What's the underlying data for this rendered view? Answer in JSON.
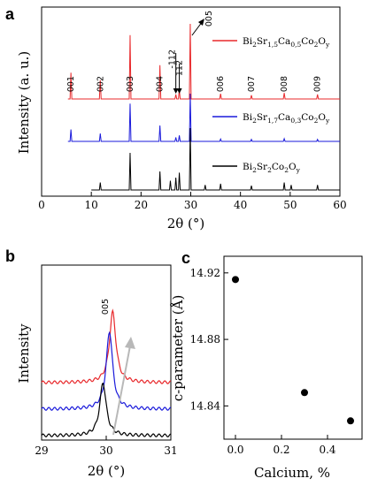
{
  "panels": {
    "a": "a",
    "b": "b",
    "c": "c"
  },
  "colors": {
    "red": "#e8282b",
    "blue": "#1a1adb",
    "black": "#000000",
    "gray": "#b8b8b8"
  },
  "chart_data": [
    {
      "id": "a",
      "type": "line",
      "xlabel": "2θ (°)",
      "ylabel": "Intensity (a. u.)",
      "xlim": [
        0,
        60
      ],
      "xticks": [
        0,
        10,
        20,
        30,
        40,
        50,
        60
      ],
      "series": [
        {
          "name_parts": [
            "Bi",
            "2",
            "Sr",
            "1,5",
            "Ca",
            "0,5",
            "Co",
            "2",
            "O",
            "y"
          ],
          "color": "#e8282b",
          "peaks": [
            [
              5.9,
              0.35
            ],
            [
              11.8,
              0.25
            ],
            [
              17.8,
              0.85
            ],
            [
              23.8,
              0.45
            ],
            [
              27.0,
              0.06
            ],
            [
              27.7,
              0.12
            ],
            [
              29.9,
              1.0
            ],
            [
              36.0,
              0.07
            ],
            [
              42.2,
              0.05
            ],
            [
              48.8,
              0.08
            ],
            [
              55.5,
              0.06
            ]
          ]
        },
        {
          "name_parts": [
            "Bi",
            "2",
            "Sr",
            "1,7",
            "Ca",
            "0,3",
            "Co",
            "2",
            "O",
            "y"
          ],
          "color": "#1a1adb",
          "peaks": [
            [
              5.9,
              0.3
            ],
            [
              11.8,
              0.2
            ],
            [
              17.8,
              0.95
            ],
            [
              23.8,
              0.4
            ],
            [
              27.0,
              0.1
            ],
            [
              27.7,
              0.15
            ],
            [
              29.9,
              1.2
            ],
            [
              36.0,
              0.06
            ],
            [
              42.2,
              0.05
            ],
            [
              48.8,
              0.07
            ],
            [
              55.5,
              0.05
            ]
          ]
        },
        {
          "name_parts": [
            "Bi",
            "2",
            "Sr",
            "2",
            "Co",
            "2",
            "O",
            "y"
          ],
          "color": "#000000",
          "peaks": [
            [
              11.8,
              0.12
            ],
            [
              17.8,
              0.6
            ],
            [
              23.8,
              0.3
            ],
            [
              25.9,
              0.15
            ],
            [
              27.0,
              0.2
            ],
            [
              27.7,
              0.28
            ],
            [
              29.9,
              1.0
            ],
            [
              32.9,
              0.08
            ],
            [
              36.0,
              0.1
            ],
            [
              42.2,
              0.07
            ],
            [
              48.8,
              0.12
            ],
            [
              50.2,
              0.08
            ],
            [
              55.5,
              0.08
            ]
          ]
        }
      ],
      "annotations": [
        {
          "label": "001",
          "x": 5.9
        },
        {
          "label": "002",
          "x": 11.8
        },
        {
          "label": "003",
          "x": 17.8
        },
        {
          "label": "004",
          "x": 23.8
        },
        {
          "label": "-112",
          "x": 26.6
        },
        {
          "label": "112",
          "x": 27.7
        },
        {
          "label": "005",
          "x": 29.9
        },
        {
          "label": "006",
          "x": 36.0
        },
        {
          "label": "007",
          "x": 42.2
        },
        {
          "label": "008",
          "x": 48.8
        },
        {
          "label": "009",
          "x": 55.5
        }
      ]
    },
    {
      "id": "b",
      "type": "line",
      "xlabel": "2θ (°)",
      "ylabel": "Intensity",
      "xlim": [
        29,
        31
      ],
      "xticks": [
        29,
        30,
        31
      ],
      "annotation": "005",
      "series": [
        {
          "color": "#e8282b",
          "offset": 0.6,
          "center": 30.1,
          "height": 1.0
        },
        {
          "color": "#1a1adb",
          "offset": 0.3,
          "center": 30.05,
          "height": 1.1
        },
        {
          "color": "#000000",
          "offset": 0.0,
          "center": 29.95,
          "height": 0.75
        }
      ]
    },
    {
      "id": "c",
      "type": "scatter",
      "xlabel": "Calcium, %",
      "ylabel": "c-parameter (Å)",
      "xlim": [
        -0.05,
        0.55
      ],
      "ylim": [
        14.82,
        14.93
      ],
      "xticks": [
        "0.0",
        "0.2",
        "0.4"
      ],
      "yticks": [
        "14.84",
        "14.88",
        "14.92"
      ],
      "x": [
        0.0,
        0.3,
        0.5
      ],
      "y": [
        14.916,
        14.848,
        14.831
      ]
    }
  ]
}
